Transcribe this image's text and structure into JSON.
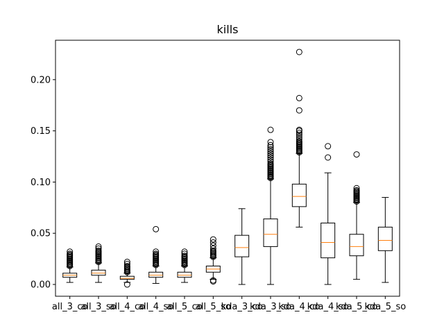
{
  "chart_data": {
    "type": "box",
    "title": "kills",
    "xlabel": "",
    "ylabel": "",
    "ylim": [
      -0.0115,
      0.2385
    ],
    "yticks": [
      0.0,
      0.05,
      0.1,
      0.15,
      0.2
    ],
    "ytick_labels": [
      "0.00",
      "0.05",
      "0.10",
      "0.15",
      "0.20"
    ],
    "grid": false,
    "colors": {
      "box": "#000000",
      "median": "#ff7f0e",
      "background": "#ffffff"
    },
    "categories": [
      "all_3_co",
      "all_3_so",
      "all_4_co",
      "all_4_so",
      "all_5_co",
      "all_5_so",
      "kda_3_co",
      "kda_3_so",
      "kda_4_co",
      "kda_4_so",
      "kda_5_co",
      "kda_5_so"
    ],
    "boxes": [
      {
        "whisker_low": 0.002,
        "q1": 0.007,
        "median": 0.009,
        "q3": 0.011,
        "whisker_high": 0.017,
        "outliers": [
          0.018,
          0.019,
          0.02,
          0.021,
          0.022,
          0.023,
          0.024,
          0.025,
          0.026,
          0.027,
          0.028,
          0.029,
          0.03,
          0.032
        ]
      },
      {
        "whisker_low": 0.002,
        "q1": 0.009,
        "median": 0.011,
        "q3": 0.014,
        "whisker_high": 0.021,
        "outliers": [
          0.022,
          0.023,
          0.024,
          0.025,
          0.026,
          0.027,
          0.028,
          0.029,
          0.03,
          0.031,
          0.032,
          0.033,
          0.035,
          0.037
        ]
      },
      {
        "whisker_low": 0.002,
        "q1": 0.005,
        "median": 0.006,
        "q3": 0.008,
        "whisker_high": 0.011,
        "outliers": [
          0.0,
          0.012,
          0.013,
          0.014,
          0.015,
          0.016,
          0.017,
          0.018,
          0.02,
          0.022
        ]
      },
      {
        "whisker_low": 0.001,
        "q1": 0.007,
        "median": 0.009,
        "q3": 0.012,
        "whisker_high": 0.018,
        "outliers": [
          0.019,
          0.02,
          0.021,
          0.022,
          0.023,
          0.024,
          0.025,
          0.026,
          0.027,
          0.028,
          0.029,
          0.03,
          0.032,
          0.054
        ]
      },
      {
        "whisker_low": 0.002,
        "q1": 0.007,
        "median": 0.009,
        "q3": 0.012,
        "whisker_high": 0.018,
        "outliers": [
          0.019,
          0.02,
          0.021,
          0.022,
          0.023,
          0.024,
          0.025,
          0.026,
          0.027,
          0.028,
          0.03,
          0.032
        ]
      },
      {
        "whisker_low": 0.005,
        "q1": 0.012,
        "median": 0.015,
        "q3": 0.018,
        "whisker_high": 0.026,
        "outliers": [
          0.003,
          0.004,
          0.027,
          0.028,
          0.029,
          0.03,
          0.031,
          0.032,
          0.033,
          0.035,
          0.038,
          0.041,
          0.044
        ]
      },
      {
        "whisker_low": 0.0,
        "q1": 0.027,
        "median": 0.036,
        "q3": 0.048,
        "whisker_high": 0.074,
        "outliers": []
      },
      {
        "whisker_low": 0.0,
        "q1": 0.037,
        "median": 0.049,
        "q3": 0.064,
        "whisker_high": 0.103,
        "outliers": [
          0.104,
          0.105,
          0.106,
          0.107,
          0.108,
          0.109,
          0.11,
          0.111,
          0.112,
          0.113,
          0.114,
          0.115,
          0.116,
          0.117,
          0.118,
          0.12,
          0.122,
          0.124,
          0.126,
          0.128,
          0.13,
          0.132,
          0.134,
          0.136,
          0.139,
          0.151
        ]
      },
      {
        "whisker_low": 0.056,
        "q1": 0.076,
        "median": 0.086,
        "q3": 0.098,
        "whisker_high": 0.128,
        "outliers": [
          0.129,
          0.13,
          0.131,
          0.132,
          0.133,
          0.134,
          0.135,
          0.136,
          0.137,
          0.138,
          0.139,
          0.14,
          0.142,
          0.144,
          0.146,
          0.148,
          0.15,
          0.151,
          0.17,
          0.182,
          0.227
        ]
      },
      {
        "whisker_low": 0.0,
        "q1": 0.026,
        "median": 0.041,
        "q3": 0.06,
        "whisker_high": 0.109,
        "outliers": [
          0.124,
          0.135
        ]
      },
      {
        "whisker_low": 0.005,
        "q1": 0.028,
        "median": 0.037,
        "q3": 0.049,
        "whisker_high": 0.08,
        "outliers": [
          0.081,
          0.082,
          0.083,
          0.084,
          0.085,
          0.086,
          0.087,
          0.088,
          0.089,
          0.09,
          0.091,
          0.092,
          0.094,
          0.127
        ]
      },
      {
        "whisker_low": 0.002,
        "q1": 0.033,
        "median": 0.043,
        "q3": 0.056,
        "whisker_high": 0.085,
        "outliers": []
      }
    ]
  }
}
